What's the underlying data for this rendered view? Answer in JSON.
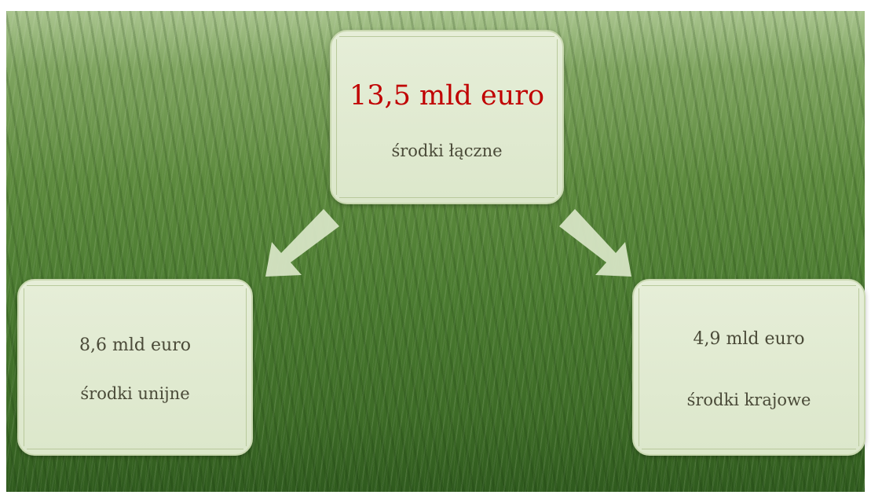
{
  "nodes": [
    {
      "amount": "13,5 mld euro",
      "label": "środki łączne"
    },
    {
      "amount": "8,6 mld euro",
      "label": "środki unijne"
    },
    {
      "amount": "4,9 mld euro",
      "label": "środki krajowe"
    }
  ]
}
